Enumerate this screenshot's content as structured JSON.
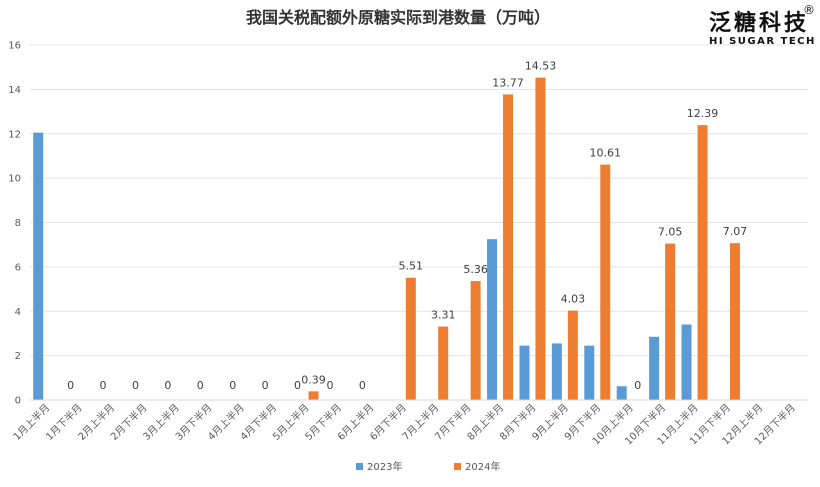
{
  "chart_data": {
    "type": "bar",
    "title": "我国关税配额外原糖实际到港数量（万吨）",
    "categories": [
      "1月上半月",
      "1月下半月",
      "2月上半月",
      "2月下半月",
      "3月上半月",
      "3月下半月",
      "4月上半月",
      "4月下半月",
      "5月上半月",
      "5月下半月",
      "6月上半月",
      "6月下半月",
      "7月上半月",
      "7月下半月",
      "8月上半月",
      "8月下半月",
      "9月上半月",
      "9月下半月",
      "10月上半月",
      "10月下半月",
      "11月上半月",
      "11月下半月",
      "12月上半月",
      "12月下半月"
    ],
    "series": [
      {
        "name": "2023年",
        "color": "#5B9BD5",
        "values": [
          12.05,
          0,
          0,
          0,
          0,
          0,
          0,
          0,
          0,
          0,
          0,
          0,
          0,
          0,
          7.25,
          2.45,
          2.55,
          2.45,
          0.62,
          2.85,
          3.4,
          0,
          0,
          0
        ],
        "labels": [
          "",
          "0",
          "0",
          "0",
          "0",
          "0",
          "0",
          "0",
          "0",
          "0",
          "0",
          "",
          "",
          "",
          "",
          "",
          "",
          "",
          "",
          "",
          "",
          "",
          "",
          ""
        ]
      },
      {
        "name": "2024年",
        "color": "#ED7D31",
        "values": [
          0,
          0,
          0,
          0,
          0,
          0,
          0,
          0,
          0.39,
          0,
          0,
          5.51,
          3.31,
          5.36,
          13.77,
          14.53,
          4.03,
          10.61,
          0,
          7.05,
          12.39,
          7.07,
          0,
          0
        ],
        "labels": [
          "",
          "",
          "",
          "",
          "",
          "",
          "",
          "",
          "0.39",
          "",
          "",
          "5.51",
          "3.31",
          "5.36",
          "13.77",
          "14.53",
          "4.03",
          "10.61",
          "0",
          "7.05",
          "12.39",
          "7.07",
          "",
          ""
        ]
      }
    ],
    "ylim": [
      0,
      16
    ],
    "yticks": [
      0,
      2,
      4,
      6,
      8,
      10,
      12,
      14,
      16
    ],
    "grid": true,
    "legend": "bottom"
  },
  "brand": {
    "cn": "泛糖科技",
    "en": "HI SUGAR TECH",
    "mark": "®"
  }
}
